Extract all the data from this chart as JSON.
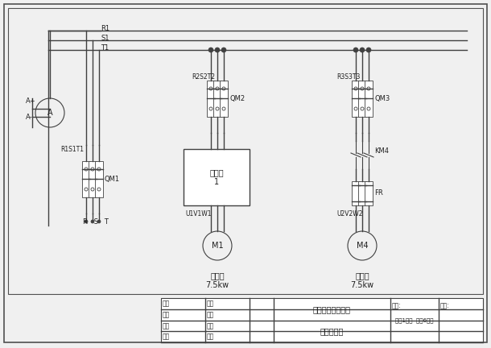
{
  "bg_color": "#f0f0f0",
  "line_color": "#404040",
  "title_text": "自动恒压供水系统",
  "subtitle_text": "电气原理图",
  "sheet_info": "第（1）张  共（6）张",
  "table_rows": [
    "设计",
    "制图",
    "审核",
    "工艺"
  ],
  "table_cols2": [
    "审准",
    "审定",
    "批准",
    "日期"
  ],
  "labels": {
    "R1": "R1",
    "S1": "S1",
    "T1": "T1",
    "Ap": "A+",
    "Am": "A-",
    "QM1": "QM1",
    "QM2": "QM2",
    "QM3": "QM3",
    "R1S1T1": "R1S1T1",
    "R2S2T2": "R2S2T2",
    "R3S3T3": "R3S3T3",
    "RST": "R  S  T",
    "inverter": "变频器\n1",
    "U1V1W1": "U1V1W1",
    "U2V2W2": "U2V2W2",
    "M1": "M1",
    "M4": "M4",
    "KM4": "KM4",
    "FR": "FR",
    "pump1_name": "变频泵",
    "pump1_power": "7.5kw",
    "pump2_name": "工频泵",
    "pump2_power": "7.5kw"
  }
}
